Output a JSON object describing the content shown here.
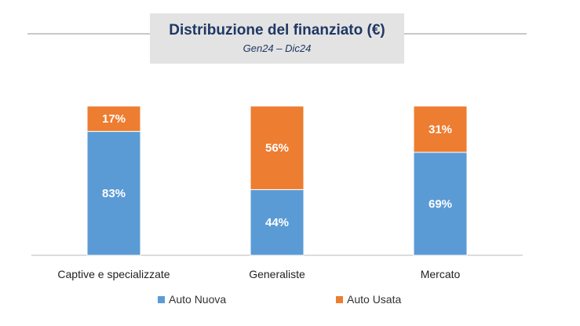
{
  "chart_data": {
    "type": "bar",
    "stacked": true,
    "title": "Distribuzione del finanziato (€)",
    "subtitle": "Gen24 – Dic24",
    "categories": [
      "Captive e specializzate",
      "Generaliste",
      "Mercato"
    ],
    "series": [
      {
        "name": "Auto Nuova",
        "color": "#5b9bd5",
        "values": [
          83,
          44,
          69
        ]
      },
      {
        "name": "Auto Usata",
        "color": "#ed7d31",
        "values": [
          17,
          56,
          31
        ]
      }
    ],
    "unit": "%",
    "ylim": [
      0,
      100
    ],
    "grid": false,
    "legend": "bottom"
  }
}
